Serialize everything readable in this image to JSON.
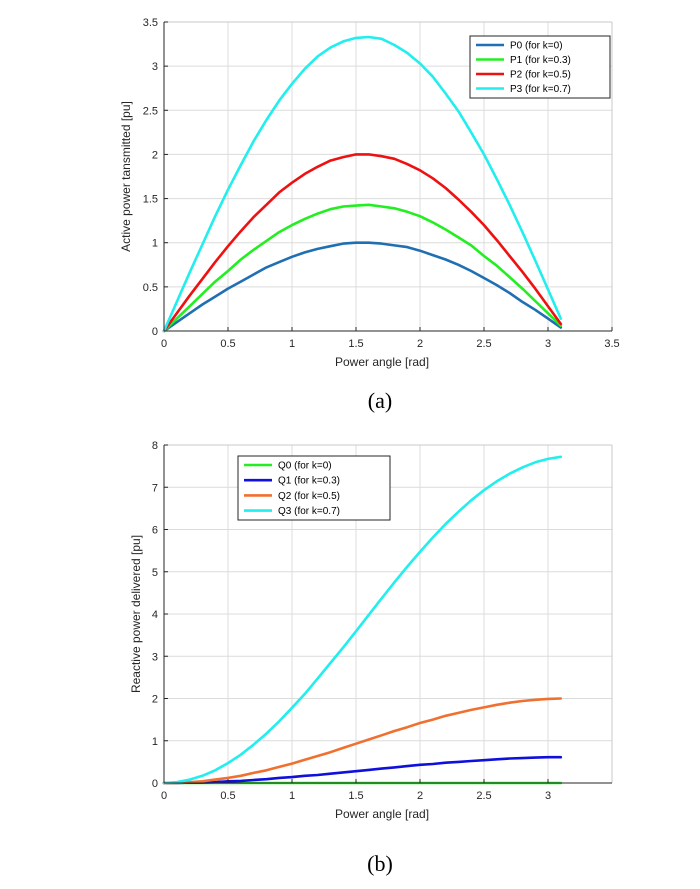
{
  "chart_data": [
    {
      "type": "line",
      "caption": "(a)",
      "xlabel": "Power angle [rad]",
      "ylabel": "Active power tansmitted [pu]",
      "xlim": [
        0,
        3.5
      ],
      "ylim": [
        0,
        3.5
      ],
      "xticks": [
        "0",
        "0.5",
        "1",
        "1.5",
        "2",
        "2.5",
        "3",
        "3.5"
      ],
      "yticks": [
        "0",
        "0.5",
        "1",
        "1.5",
        "2",
        "2.5",
        "3",
        "3.5"
      ],
      "grid": true,
      "legend_position": "top-right",
      "series": [
        {
          "name": "P0 (for k=0)",
          "color": "#1f6fb2",
          "x": [
            0,
            0.1,
            0.2,
            0.3,
            0.4,
            0.5,
            0.6,
            0.7,
            0.8,
            0.9,
            1.0,
            1.1,
            1.2,
            1.3,
            1.4,
            1.5,
            1.6,
            1.7,
            1.8,
            1.9,
            2.0,
            2.1,
            2.2,
            2.3,
            2.4,
            2.5,
            2.6,
            2.7,
            2.8,
            2.9,
            3.0,
            3.1
          ],
          "y": [
            0,
            0.1,
            0.2,
            0.3,
            0.39,
            0.48,
            0.56,
            0.64,
            0.72,
            0.78,
            0.84,
            0.89,
            0.93,
            0.96,
            0.99,
            1.0,
            1.0,
            0.99,
            0.97,
            0.95,
            0.91,
            0.86,
            0.81,
            0.75,
            0.68,
            0.6,
            0.52,
            0.43,
            0.33,
            0.24,
            0.14,
            0.04
          ]
        },
        {
          "name": "P1 (for k=0.3)",
          "color": "#22ee22",
          "x": [
            0,
            0.1,
            0.2,
            0.3,
            0.4,
            0.5,
            0.6,
            0.7,
            0.8,
            0.9,
            1.0,
            1.1,
            1.2,
            1.3,
            1.4,
            1.5,
            1.6,
            1.7,
            1.8,
            1.9,
            2.0,
            2.1,
            2.2,
            2.3,
            2.4,
            2.5,
            2.6,
            2.7,
            2.8,
            2.9,
            3.0,
            3.1
          ],
          "y": [
            0,
            0.14,
            0.28,
            0.42,
            0.56,
            0.68,
            0.81,
            0.92,
            1.02,
            1.12,
            1.2,
            1.27,
            1.33,
            1.38,
            1.41,
            1.42,
            1.43,
            1.41,
            1.39,
            1.35,
            1.3,
            1.23,
            1.15,
            1.06,
            0.97,
            0.85,
            0.74,
            0.61,
            0.48,
            0.34,
            0.2,
            0.06
          ]
        },
        {
          "name": "P2 (for k=0.5)",
          "color": "#ee1111",
          "x": [
            0,
            0.1,
            0.2,
            0.3,
            0.4,
            0.5,
            0.6,
            0.7,
            0.8,
            0.9,
            1.0,
            1.1,
            1.2,
            1.3,
            1.4,
            1.5,
            1.6,
            1.7,
            1.8,
            1.9,
            2.0,
            2.1,
            2.2,
            2.3,
            2.4,
            2.5,
            2.6,
            2.7,
            2.8,
            2.9,
            3.0,
            3.1
          ],
          "y": [
            0,
            0.2,
            0.4,
            0.59,
            0.78,
            0.96,
            1.13,
            1.29,
            1.43,
            1.57,
            1.68,
            1.78,
            1.86,
            1.93,
            1.97,
            2.0,
            2.0,
            1.98,
            1.95,
            1.89,
            1.82,
            1.73,
            1.62,
            1.49,
            1.35,
            1.2,
            1.03,
            0.85,
            0.67,
            0.48,
            0.28,
            0.08
          ]
        },
        {
          "name": "P3 (for k=0.7)",
          "color": "#22eeee",
          "x": [
            0,
            0.1,
            0.2,
            0.3,
            0.4,
            0.5,
            0.6,
            0.7,
            0.8,
            0.9,
            1.0,
            1.1,
            1.2,
            1.3,
            1.4,
            1.5,
            1.6,
            1.7,
            1.8,
            1.9,
            2.0,
            2.1,
            2.2,
            2.3,
            2.4,
            2.5,
            2.6,
            2.7,
            2.8,
            2.9,
            3.0,
            3.1
          ],
          "y": [
            0,
            0.33,
            0.66,
            0.98,
            1.3,
            1.6,
            1.88,
            2.15,
            2.39,
            2.61,
            2.8,
            2.97,
            3.11,
            3.21,
            3.28,
            3.32,
            3.33,
            3.31,
            3.24,
            3.15,
            3.03,
            2.88,
            2.69,
            2.49,
            2.25,
            2.0,
            1.72,
            1.43,
            1.12,
            0.8,
            0.47,
            0.14
          ]
        }
      ]
    },
    {
      "type": "line",
      "caption": "(b)",
      "xlabel": "Power angle [rad]",
      "ylabel": "Reactive power delivered [pu]",
      "xlim": [
        0,
        3.5
      ],
      "ylim": [
        0,
        8
      ],
      "xticks": [
        "0",
        "0.5",
        "1",
        "1.5",
        "2",
        "2.5",
        "3"
      ],
      "yticks": [
        "0",
        "1",
        "2",
        "3",
        "4",
        "5",
        "6",
        "7",
        "8"
      ],
      "grid": true,
      "legend_position": "top-left",
      "series": [
        {
          "name": "Q0 (for k=0)",
          "color": "#22ee22",
          "x": [
            0,
            0.1,
            0.2,
            0.3,
            0.4,
            0.5,
            0.6,
            0.7,
            0.8,
            0.9,
            1.0,
            1.1,
            1.2,
            1.3,
            1.4,
            1.5,
            1.6,
            1.7,
            1.8,
            1.9,
            2.0,
            2.1,
            2.2,
            2.3,
            2.4,
            2.5,
            2.6,
            2.7,
            2.8,
            2.9,
            3.0,
            3.1
          ],
          "y": [
            0,
            0,
            0,
            0,
            0,
            0,
            0,
            0,
            0,
            0,
            0,
            0,
            0,
            0,
            0,
            0,
            0,
            0,
            0,
            0,
            0,
            0,
            0,
            0,
            0,
            0,
            0,
            0,
            0,
            0,
            0,
            0
          ]
        },
        {
          "name": "Q1 (for k=0.3)",
          "color": "#1010dd",
          "x": [
            0,
            0.1,
            0.2,
            0.3,
            0.4,
            0.5,
            0.6,
            0.7,
            0.8,
            0.9,
            1.0,
            1.1,
            1.2,
            1.3,
            1.4,
            1.5,
            1.6,
            1.7,
            1.8,
            1.9,
            2.0,
            2.1,
            2.2,
            2.3,
            2.4,
            2.5,
            2.6,
            2.7,
            2.8,
            2.9,
            3.0,
            3.1
          ],
          "y": [
            0,
            0,
            0.01,
            0.01,
            0.02,
            0.04,
            0.05,
            0.07,
            0.09,
            0.12,
            0.14,
            0.17,
            0.19,
            0.22,
            0.25,
            0.28,
            0.31,
            0.34,
            0.37,
            0.4,
            0.43,
            0.45,
            0.48,
            0.5,
            0.52,
            0.54,
            0.56,
            0.58,
            0.59,
            0.6,
            0.61,
            0.61
          ]
        },
        {
          "name": "Q2 (for k=0.5)",
          "color": "#f07030",
          "x": [
            0,
            0.1,
            0.2,
            0.3,
            0.4,
            0.5,
            0.6,
            0.7,
            0.8,
            0.9,
            1.0,
            1.1,
            1.2,
            1.3,
            1.4,
            1.5,
            1.6,
            1.7,
            1.8,
            1.9,
            2.0,
            2.1,
            2.2,
            2.3,
            2.4,
            2.5,
            2.6,
            2.7,
            2.8,
            2.9,
            3.0,
            3.1
          ],
          "y": [
            0,
            0,
            0.02,
            0.04,
            0.08,
            0.12,
            0.17,
            0.24,
            0.3,
            0.38,
            0.46,
            0.55,
            0.64,
            0.73,
            0.83,
            0.93,
            1.03,
            1.13,
            1.23,
            1.32,
            1.42,
            1.5,
            1.59,
            1.66,
            1.73,
            1.79,
            1.85,
            1.9,
            1.94,
            1.97,
            1.99,
            2.0
          ]
        },
        {
          "name": "Q3 (for k=0.7)",
          "color": "#22eeee",
          "x": [
            0,
            0.1,
            0.2,
            0.3,
            0.4,
            0.5,
            0.6,
            0.7,
            0.8,
            0.9,
            1.0,
            1.1,
            1.2,
            1.3,
            1.4,
            1.5,
            1.6,
            1.7,
            1.8,
            1.9,
            2.0,
            2.1,
            2.2,
            2.3,
            2.4,
            2.5,
            2.6,
            2.7,
            2.8,
            2.9,
            3.0,
            3.1
          ],
          "y": [
            0,
            0.02,
            0.08,
            0.17,
            0.3,
            0.47,
            0.67,
            0.91,
            1.17,
            1.46,
            1.78,
            2.11,
            2.47,
            2.84,
            3.21,
            3.59,
            3.98,
            4.37,
            4.75,
            5.12,
            5.47,
            5.81,
            6.13,
            6.42,
            6.69,
            6.93,
            7.14,
            7.32,
            7.47,
            7.59,
            7.67,
            7.72
          ]
        }
      ]
    }
  ]
}
